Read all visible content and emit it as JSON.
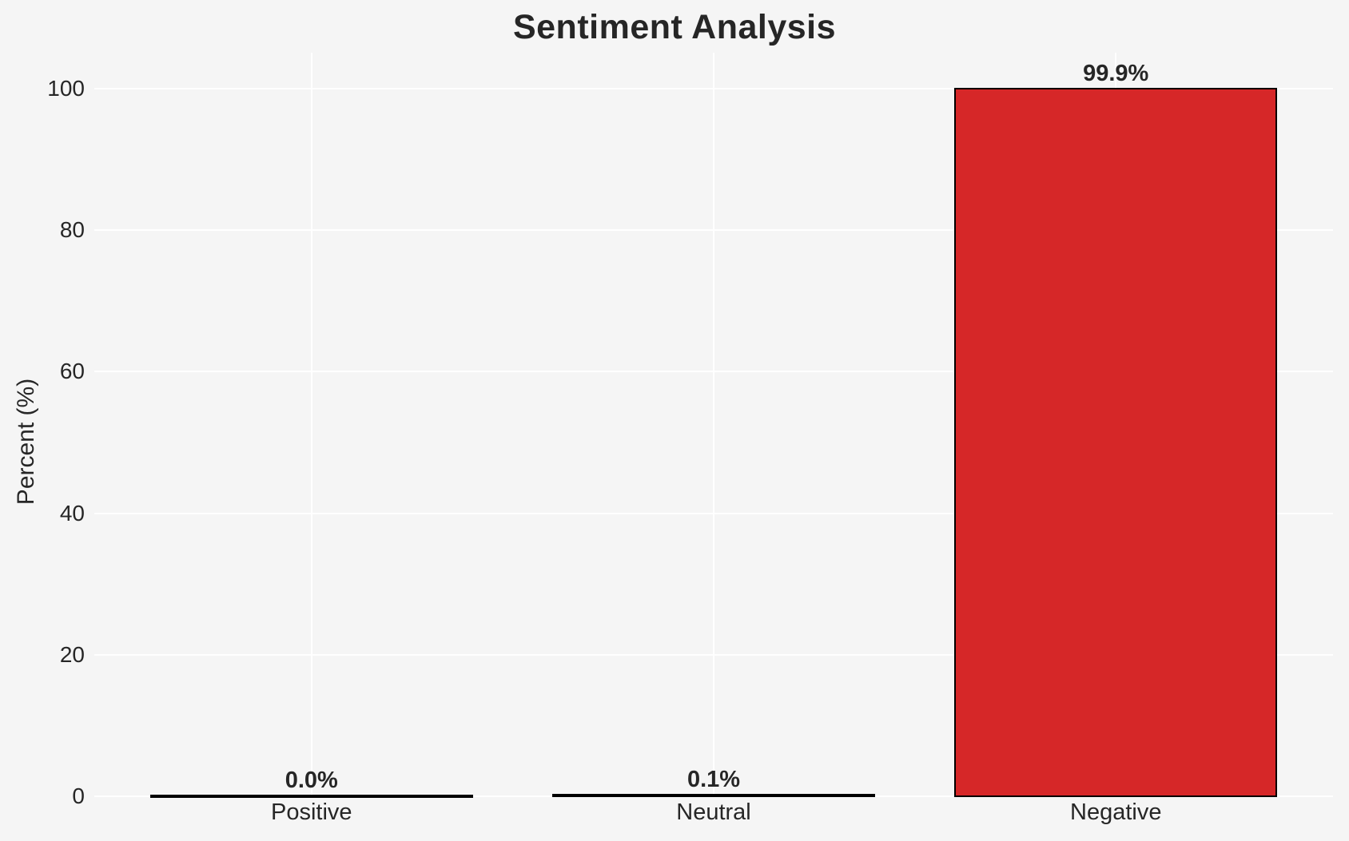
{
  "chart_data": {
    "type": "bar",
    "title": "Sentiment Analysis",
    "xlabel": "",
    "ylabel": "Percent (%)",
    "categories": [
      "Positive",
      "Neutral",
      "Negative"
    ],
    "values": [
      0.0,
      0.1,
      99.9
    ],
    "value_labels": [
      "0.0%",
      "0.1%",
      "99.9%"
    ],
    "ylim": [
      0,
      100
    ],
    "yticks": [
      0,
      20,
      40,
      60,
      80,
      100
    ],
    "grid": true,
    "legend_position": "none",
    "colors": {
      "background": "#f5f5f5",
      "gridline": "#ffffff",
      "bar_fill": "#d62728",
      "bar_edge": "#000000",
      "text": "#262626"
    }
  }
}
